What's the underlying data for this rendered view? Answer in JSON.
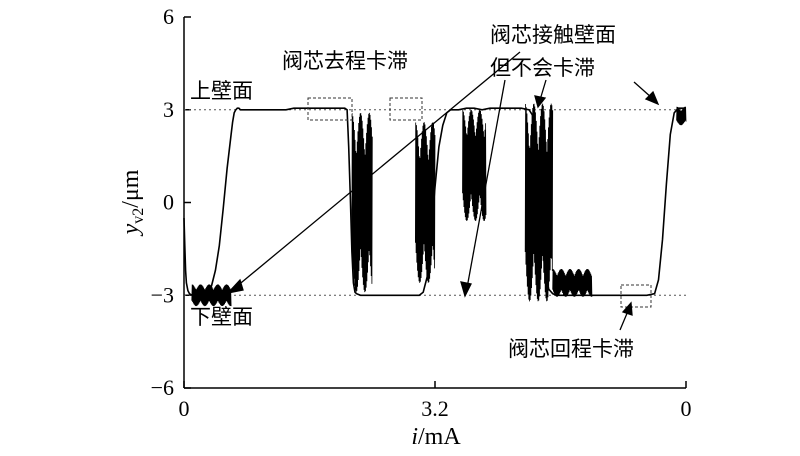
{
  "chart_data": {
    "type": "line",
    "title": "",
    "xlabel_italic": "i",
    "xlabel_rest": "/mA",
    "ylabel_main": "y",
    "ylabel_sub": "v2",
    "ylabel_unit": "/μm",
    "x_tick_labels": [
      "0",
      "3.2",
      "0"
    ],
    "y_ticks": [
      6,
      3,
      0,
      -3,
      -6
    ],
    "y_tick_labels": [
      "6",
      "3",
      "0",
      "−3",
      "−6"
    ],
    "ylim": [
      -6,
      6
    ],
    "x_domain_note": "current sweeps 0 → 3.2 → 0 mA",
    "reference_lines": [
      {
        "y": 3,
        "label": "上壁面"
      },
      {
        "y": -3,
        "label": "下壁面"
      }
    ],
    "annotations": [
      {
        "text": "阀芯去程卡滞"
      },
      {
        "text": "阀芯接触壁面"
      },
      {
        "text": "但不会卡滞"
      },
      {
        "text": "阀芯回程卡滞"
      }
    ],
    "series": [
      {
        "x": [
          0.0,
          0.01,
          0.02,
          0.03,
          0.05,
          0.07,
          0.1,
          0.13,
          0.16,
          0.2,
          0.25,
          0.3,
          0.35,
          0.4,
          0.45,
          0.5,
          0.55,
          0.6,
          0.62,
          0.64,
          0.66,
          0.68,
          0.7,
          0.72,
          0.74,
          0.76,
          0.8,
          0.9,
          1.0,
          1.1,
          1.2,
          1.3,
          1.4,
          1.5,
          1.6,
          1.7,
          1.8,
          1.9,
          2.0,
          2.05,
          2.08,
          2.1,
          2.12,
          2.14,
          2.16,
          2.18,
          2.2,
          2.25,
          2.3,
          2.4,
          2.5,
          2.6,
          2.7,
          2.8,
          2.9,
          3.0,
          3.05,
          3.1,
          3.15,
          3.2,
          3.25,
          3.3,
          3.35,
          3.4,
          3.5,
          3.6,
          3.7,
          3.8,
          3.9,
          4.0,
          4.1,
          4.2,
          4.3,
          4.4,
          4.45,
          4.5,
          4.55,
          4.6,
          4.65,
          4.7,
          4.75,
          4.8,
          4.9,
          5.0,
          5.1,
          5.2,
          5.3,
          5.4,
          5.5,
          5.6,
          5.7,
          5.8,
          5.9,
          6.0,
          6.05,
          6.1,
          6.15,
          6.2,
          6.25,
          6.3,
          6.35,
          6.4
        ],
        "y": [
          -0.5,
          -1.4,
          -2.2,
          -2.6,
          -2.85,
          -2.95,
          -3.0,
          -2.9,
          -2.95,
          -3.0,
          -3.0,
          -2.9,
          -2.7,
          -2.2,
          -1.4,
          -0.2,
          1.1,
          2.2,
          2.6,
          2.9,
          3.0,
          3.05,
          3.05,
          3.0,
          3.0,
          3.0,
          3.0,
          3.0,
          3.0,
          3.0,
          3.0,
          3.0,
          3.05,
          3.05,
          3.05,
          3.05,
          3.05,
          3.05,
          3.05,
          3.05,
          3.0,
          1.8,
          0.2,
          -1.6,
          -2.6,
          -2.9,
          -2.95,
          -3.0,
          -3.0,
          -3.0,
          -3.0,
          -3.0,
          -3.0,
          -3.0,
          -3.0,
          -3.0,
          -2.9,
          -2.4,
          -1.0,
          0.5,
          1.8,
          2.5,
          2.9,
          3.0,
          3.0,
          3.05,
          3.05,
          3.0,
          3.05,
          3.05,
          3.05,
          3.05,
          3.05,
          3.0,
          2.8,
          1.5,
          -0.5,
          -2.2,
          -2.8,
          -2.95,
          -3.0,
          -3.0,
          -3.0,
          -3.0,
          -3.0,
          -3.0,
          -3.0,
          -3.0,
          -3.0,
          -3.0,
          -3.0,
          -3.0,
          -3.0,
          -2.95,
          -2.5,
          -1.2,
          0.6,
          2.2,
          2.9,
          3.05,
          3.05,
          3.05
        ]
      }
    ]
  }
}
